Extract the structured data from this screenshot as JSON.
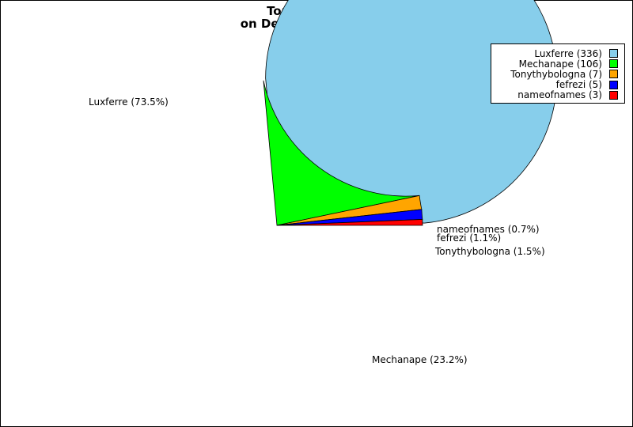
{
  "chart_data": {
    "type": "pie",
    "title_lines": [
      "Top 10 taggers",
      "on December 3rd 2024"
    ],
    "categories": [
      "Luxferre",
      "Mechanape",
      "Tonythybologna",
      "fefrezi",
      "nameofnames"
    ],
    "values": [
      336,
      106,
      7,
      5,
      3
    ],
    "colors": [
      "#87ceeb",
      "#00ff00",
      "#ffa500",
      "#0000ff",
      "#ff0000"
    ],
    "slice_labels": [
      "Luxferre (73.5%)",
      "Mechanape (23.2%)",
      "Tonythybologna (1.5%)",
      "fefrezi (1.1%)",
      "nameofnames (0.7%)"
    ],
    "legend": {
      "placement": "top-right",
      "entries": [
        "Luxferre (336)",
        "Mechanape (106)",
        "Tonythybologna (7)",
        "fefrezi (5)",
        "nameofnames (3)"
      ]
    }
  }
}
